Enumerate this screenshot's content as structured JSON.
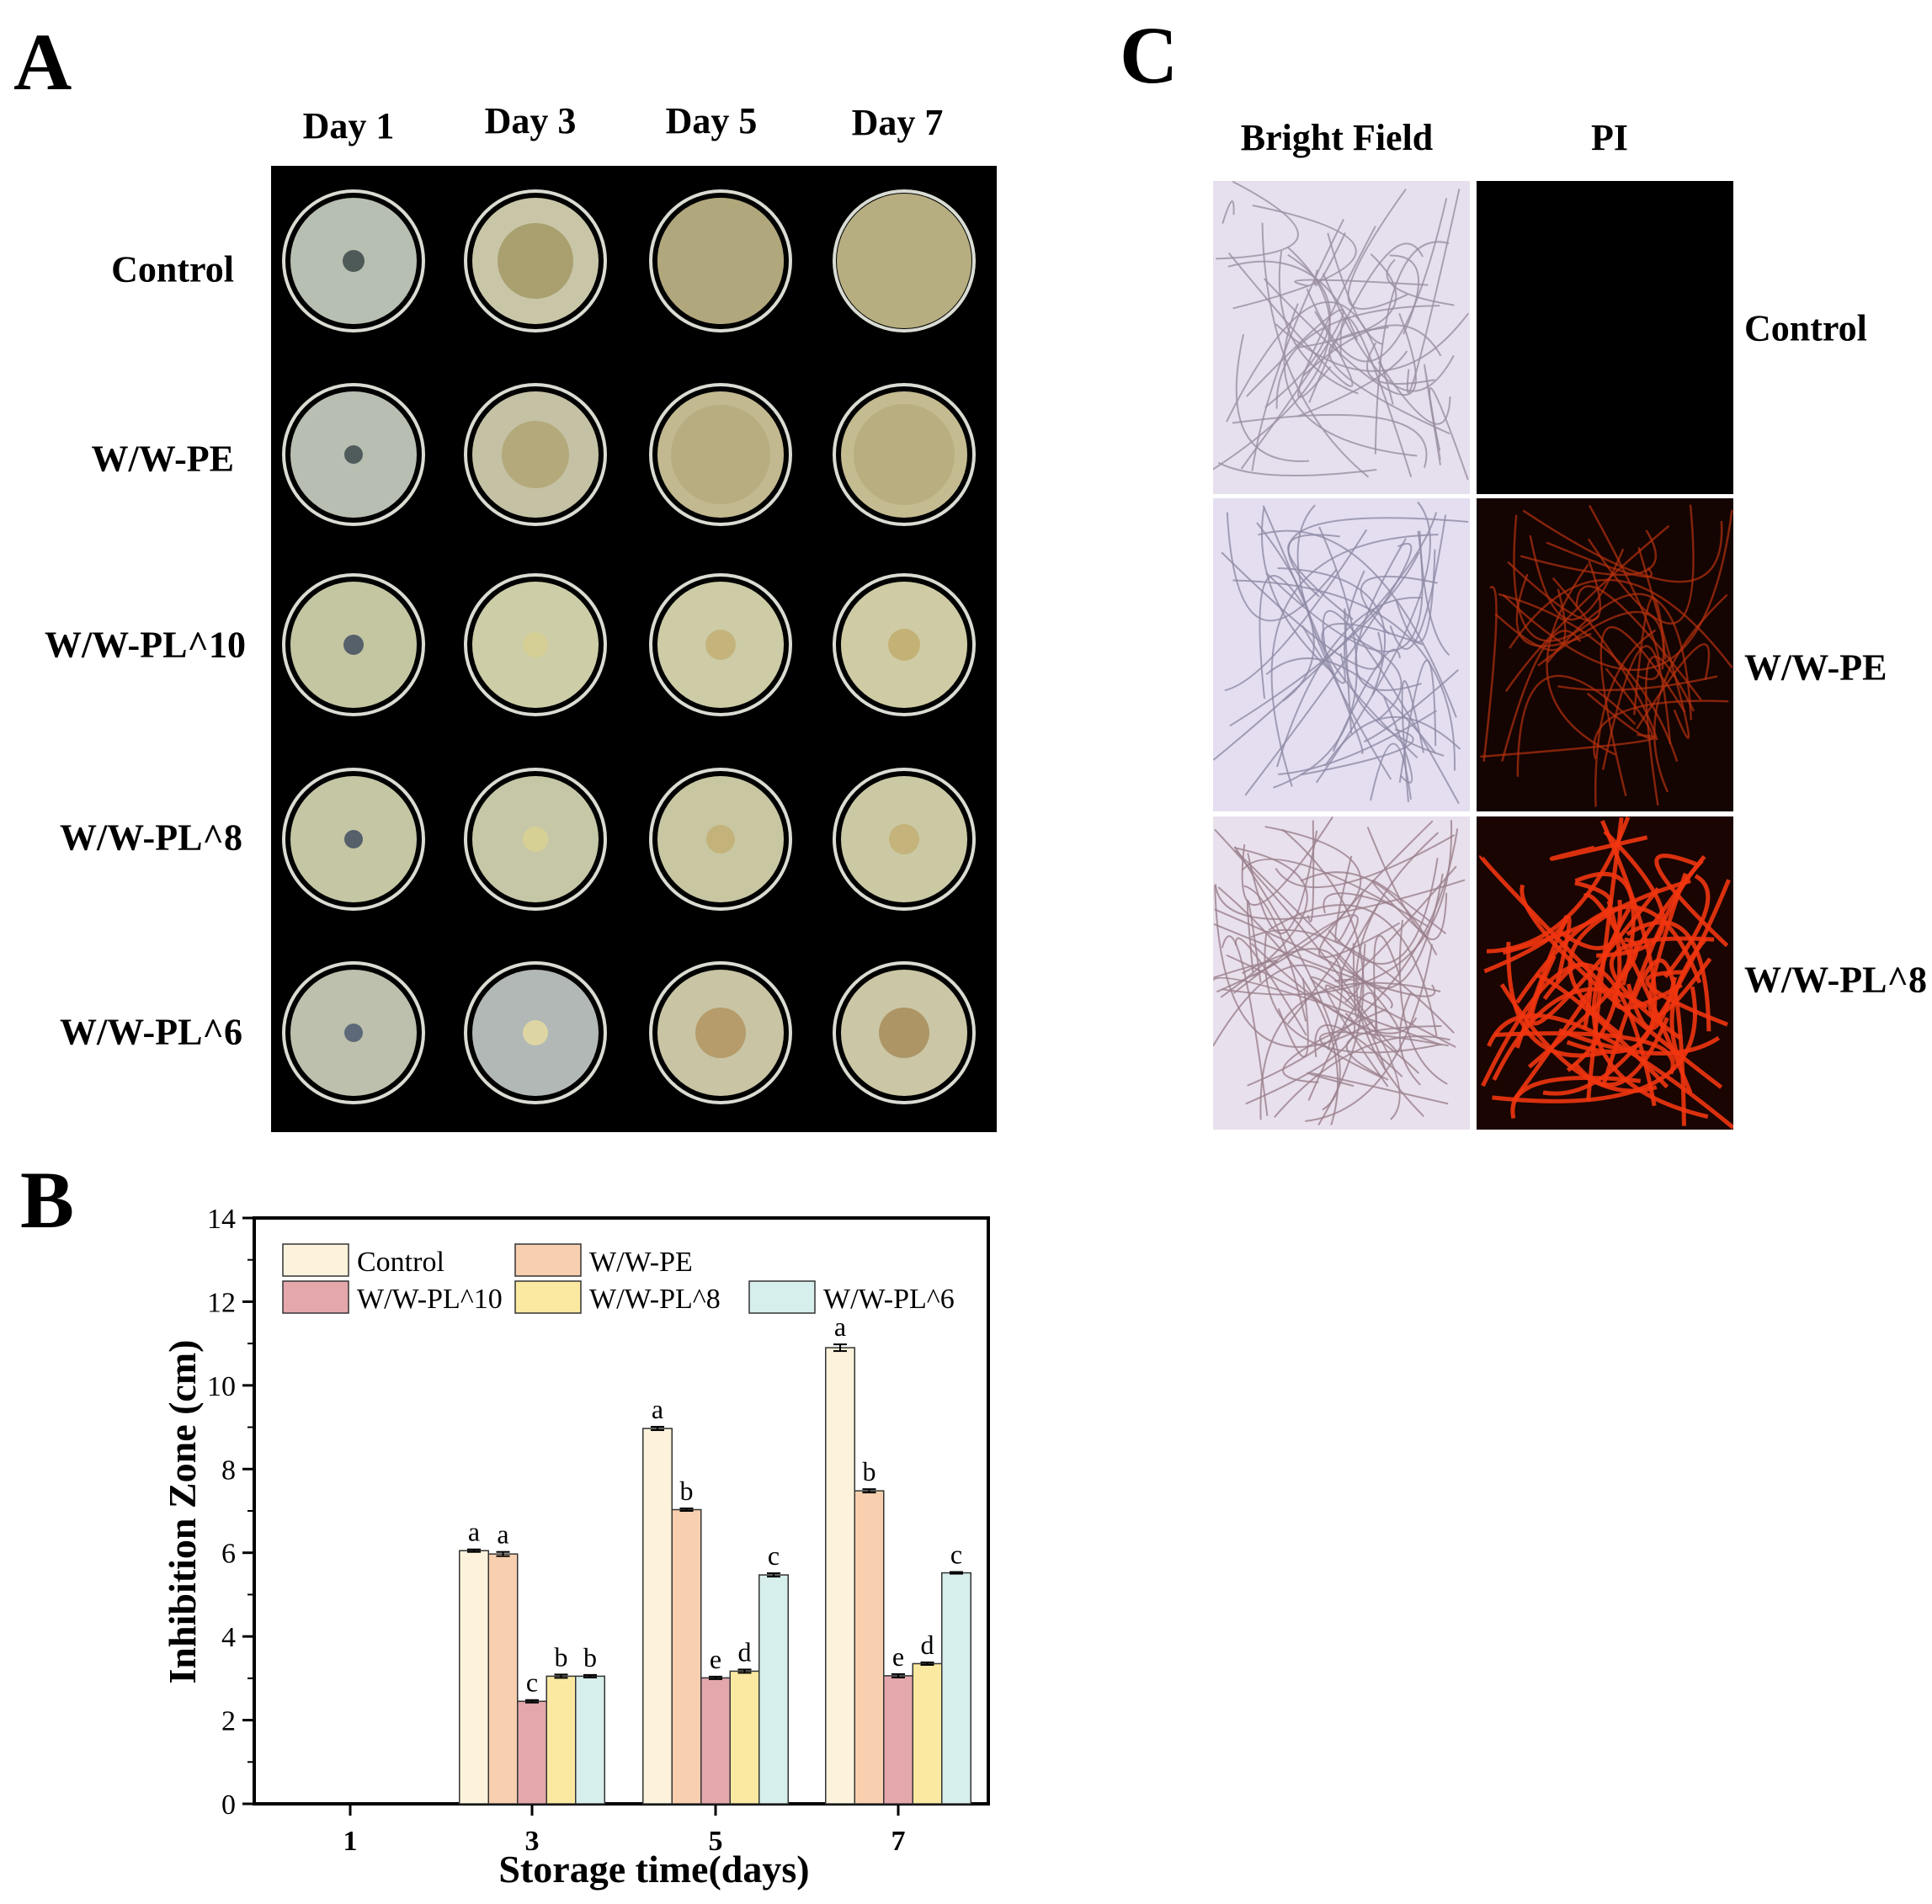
{
  "panels": {
    "A": "A",
    "B": "B",
    "C": "C"
  },
  "panel_a": {
    "days": [
      "Day 1",
      "Day 3",
      "Day 5",
      "Day 7"
    ],
    "rows": [
      "Control",
      "W/W-PE",
      "W/W-PL^10",
      "W/W-PL^8",
      "W/W-PL^6"
    ]
  },
  "panel_c": {
    "columns": [
      "Bright Field",
      "PI"
    ],
    "rows": [
      "Control",
      "W/W-PE",
      "W/W-PL^8"
    ]
  },
  "chart_data": {
    "type": "bar",
    "xlabel": "Storage time(days)",
    "ylabel": "Inhibition Zone (cm)",
    "categories": [
      "1",
      "3",
      "5",
      "7"
    ],
    "ylim": [
      0,
      14
    ],
    "yticks": [
      0,
      2,
      4,
      6,
      8,
      10,
      12,
      14
    ],
    "legend_position": "top-left",
    "series": [
      {
        "name": "Control",
        "color": "#fdf3dc",
        "values": [
          null,
          6.05,
          8.97,
          10.9
        ],
        "errors": [
          null,
          0.03,
          0.04,
          0.08
        ],
        "letters": [
          "",
          "a",
          "a",
          "a"
        ]
      },
      {
        "name": "W/W-PE",
        "color": "#f8cfaf",
        "values": [
          null,
          5.97,
          7.03,
          7.48
        ],
        "errors": [
          null,
          0.05,
          0.03,
          0.04
        ],
        "letters": [
          "",
          "a",
          "b",
          "b"
        ]
      },
      {
        "name": "W/W-PL^10",
        "color": "#e4a7ac",
        "values": [
          null,
          2.45,
          3.01,
          3.06
        ],
        "errors": [
          null,
          0.03,
          0.03,
          0.04
        ],
        "letters": [
          "",
          "c",
          "e",
          "e"
        ]
      },
      {
        "name": "W/W-PL^8",
        "color": "#fbe9a2",
        "values": [
          null,
          3.05,
          3.17,
          3.35
        ],
        "errors": [
          null,
          0.04,
          0.04,
          0.03
        ],
        "letters": [
          "",
          "b",
          "d",
          "d"
        ]
      },
      {
        "name": "W/W-PL^6",
        "color": "#d7efec",
        "values": [
          null,
          3.05,
          5.47,
          5.52
        ],
        "errors": [
          null,
          0.03,
          0.04,
          0.02
        ],
        "letters": [
          "",
          "b",
          "c",
          "c"
        ]
      }
    ]
  }
}
